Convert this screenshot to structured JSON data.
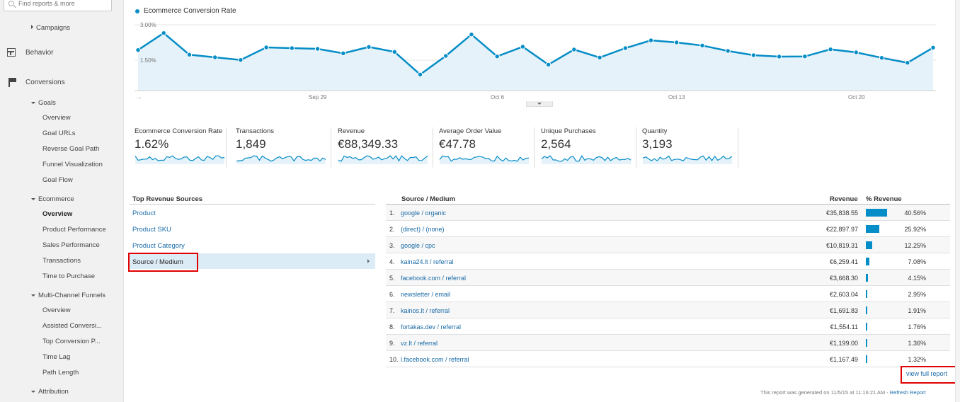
{
  "search": {
    "placeholder": "Find reports & more"
  },
  "sidebar": {
    "campaigns": "Campaigns",
    "behavior": "Behavior",
    "conversions": "Conversions",
    "goals": "Goals",
    "goals_items": [
      "Overview",
      "Goal URLs",
      "Reverse Goal Path",
      "Funnel Visualization",
      "Goal Flow"
    ],
    "ecommerce": "Ecommerce",
    "ecommerce_items": [
      "Overview",
      "Product Performance",
      "Sales Performance",
      "Transactions",
      "Time to Purchase"
    ],
    "mcf": "Multi-Channel Funnels",
    "mcf_items": [
      "Overview",
      "Assisted Conversi...",
      "Top Conversion P...",
      "Time Lag",
      "Path Length"
    ],
    "attribution": "Attribution"
  },
  "chart_data": {
    "type": "area",
    "series": [
      {
        "name": "Ecommerce Conversion Rate",
        "values": [
          1.72,
          2.44,
          1.52,
          1.41,
          1.3,
          1.83,
          1.8,
          1.77,
          1.58,
          1.85,
          1.64,
          0.68,
          1.47,
          2.38,
          1.45,
          1.86,
          1.1,
          1.74,
          1.4,
          1.8,
          2.13,
          2.04,
          1.91,
          1.68,
          1.5,
          1.44,
          1.45,
          1.75,
          1.62,
          1.39,
          1.18,
          1.82
        ]
      }
    ],
    "x_tick_labels": [
      "...",
      "Sep 29",
      "Oct 6",
      "Oct 13",
      "Oct 20"
    ],
    "y_tick_labels": [
      "3.00%",
      "1.50%"
    ],
    "ylim": [
      0,
      3.0
    ],
    "color": "#058dc7",
    "grid": true
  },
  "metrics": [
    {
      "label": "Ecommerce Conversion Rate",
      "value": "1.62%"
    },
    {
      "label": "Transactions",
      "value": "1,849"
    },
    {
      "label": "Revenue",
      "value": "€88,349.33"
    },
    {
      "label": "Average Order Value",
      "value": "€47.78"
    },
    {
      "label": "Unique Purchases",
      "value": "2,564"
    },
    {
      "label": "Quantity",
      "value": "3,193"
    }
  ],
  "left_panel": {
    "title": "Top Revenue Sources",
    "links": [
      "Product",
      "Product SKU",
      "Product Category",
      "Source / Medium"
    ]
  },
  "table": {
    "headers": [
      "Source / Medium",
      "Revenue",
      "% Revenue"
    ],
    "rows": [
      {
        "idx": "1.",
        "source": "google / organic",
        "revenue": "€35,838.55",
        "pct": "40.56%",
        "share": 40.56
      },
      {
        "idx": "2.",
        "source": "(direct) / (none)",
        "revenue": "€22,897.97",
        "pct": "25.92%",
        "share": 25.92
      },
      {
        "idx": "3.",
        "source": "google / cpc",
        "revenue": "€10,819.31",
        "pct": "12.25%",
        "share": 12.25
      },
      {
        "idx": "4.",
        "source": "kaina24.lt / referral",
        "revenue": "€6,259.41",
        "pct": "7.08%",
        "share": 7.08
      },
      {
        "idx": "5.",
        "source": "facebook.com / referral",
        "revenue": "€3,668.30",
        "pct": "4.15%",
        "share": 4.15
      },
      {
        "idx": "6.",
        "source": "newsletter / email",
        "revenue": "€2,603.04",
        "pct": "2.95%",
        "share": 2.95
      },
      {
        "idx": "7.",
        "source": "kainos.lt / referral",
        "revenue": "€1,691.83",
        "pct": "1.91%",
        "share": 1.91
      },
      {
        "idx": "8.",
        "source": "fortakas.dev / referral",
        "revenue": "€1,554.11",
        "pct": "1.76%",
        "share": 1.76
      },
      {
        "idx": "9.",
        "source": "vz.lt / referral",
        "revenue": "€1,199.00",
        "pct": "1.36%",
        "share": 1.36
      },
      {
        "idx": "10.",
        "source": "l.facebook.com / referral",
        "revenue": "€1,167.49",
        "pct": "1.32%",
        "share": 1.32
      }
    ]
  },
  "view_full_report": "view full report",
  "footer": {
    "text": "This report was generated on 11/5/15 at 11:16:21 AM -",
    "link": "Refresh Report"
  }
}
